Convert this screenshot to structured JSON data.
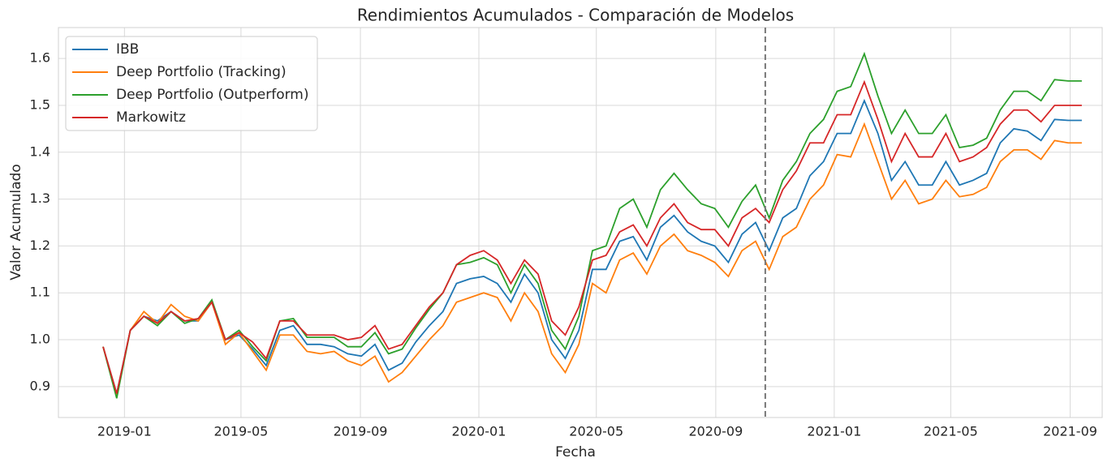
{
  "chart_data": {
    "type": "line",
    "title": "Rendimientos Acumulados - Comparación de Modelos",
    "xlabel": "Fecha",
    "ylabel": "Valor Acumulado",
    "x": [
      "2018-12-10",
      "2018-12-24",
      "2019-01-07",
      "2019-01-21",
      "2019-02-04",
      "2019-02-18",
      "2019-03-04",
      "2019-03-18",
      "2019-04-01",
      "2019-04-15",
      "2019-04-29",
      "2019-05-13",
      "2019-05-27",
      "2019-06-10",
      "2019-06-24",
      "2019-07-08",
      "2019-07-22",
      "2019-08-05",
      "2019-08-19",
      "2019-09-02",
      "2019-09-16",
      "2019-09-30",
      "2019-10-14",
      "2019-10-28",
      "2019-11-11",
      "2019-11-25",
      "2019-12-09",
      "2019-12-23",
      "2020-01-06",
      "2020-01-20",
      "2020-02-03",
      "2020-02-17",
      "2020-03-02",
      "2020-03-16",
      "2020-03-30",
      "2020-04-13",
      "2020-04-27",
      "2020-05-11",
      "2020-05-25",
      "2020-06-08",
      "2020-06-22",
      "2020-07-06",
      "2020-07-20",
      "2020-08-03",
      "2020-08-17",
      "2020-08-31",
      "2020-09-14",
      "2020-09-28",
      "2020-10-12",
      "2020-10-26",
      "2020-11-09",
      "2020-11-23",
      "2020-12-07",
      "2020-12-21",
      "2021-01-04",
      "2021-01-18",
      "2021-02-01",
      "2021-02-15",
      "2021-03-01",
      "2021-03-15",
      "2021-03-29",
      "2021-04-12",
      "2021-04-26",
      "2021-05-10",
      "2021-05-24",
      "2021-06-07",
      "2021-06-21",
      "2021-07-05",
      "2021-07-19",
      "2021-08-02",
      "2021-08-16",
      "2021-08-30",
      "2021-09-13"
    ],
    "series": [
      {
        "name": "IBB",
        "color": "#1f77b4",
        "values": [
          0.985,
          0.885,
          1.02,
          1.05,
          1.04,
          1.06,
          1.04,
          1.04,
          1.08,
          1.0,
          1.01,
          0.98,
          0.945,
          1.02,
          1.03,
          0.99,
          0.99,
          0.985,
          0.97,
          0.965,
          0.99,
          0.935,
          0.95,
          0.995,
          1.03,
          1.06,
          1.12,
          1.13,
          1.135,
          1.12,
          1.08,
          1.14,
          1.1,
          1.0,
          0.96,
          1.02,
          1.15,
          1.15,
          1.21,
          1.22,
          1.17,
          1.24,
          1.265,
          1.23,
          1.21,
          1.2,
          1.165,
          1.225,
          1.25,
          1.19,
          1.26,
          1.28,
          1.35,
          1.38,
          1.44,
          1.44,
          1.51,
          1.44,
          1.34,
          1.38,
          1.33,
          1.33,
          1.38,
          1.33,
          1.34,
          1.355,
          1.42,
          1.45,
          1.445,
          1.425,
          1.47,
          1.468,
          1.468
        ]
      },
      {
        "name": "Deep Portfolio (Tracking)",
        "color": "#ff7f0e",
        "values": [
          0.985,
          0.88,
          1.02,
          1.06,
          1.035,
          1.075,
          1.05,
          1.04,
          1.08,
          0.99,
          1.015,
          0.975,
          0.935,
          1.01,
          1.01,
          0.975,
          0.97,
          0.975,
          0.955,
          0.945,
          0.965,
          0.91,
          0.93,
          0.965,
          1.0,
          1.03,
          1.08,
          1.09,
          1.1,
          1.09,
          1.04,
          1.1,
          1.06,
          0.97,
          0.93,
          0.99,
          1.12,
          1.1,
          1.17,
          1.185,
          1.14,
          1.2,
          1.225,
          1.19,
          1.18,
          1.165,
          1.135,
          1.19,
          1.21,
          1.15,
          1.22,
          1.24,
          1.3,
          1.33,
          1.395,
          1.39,
          1.46,
          1.38,
          1.3,
          1.34,
          1.29,
          1.3,
          1.34,
          1.305,
          1.31,
          1.325,
          1.38,
          1.405,
          1.405,
          1.385,
          1.425,
          1.42,
          1.42
        ]
      },
      {
        "name": "Deep Portfolio (Outperform)",
        "color": "#2ca02c",
        "values": [
          0.985,
          0.875,
          1.02,
          1.05,
          1.03,
          1.06,
          1.035,
          1.045,
          1.085,
          1.0,
          1.02,
          0.985,
          0.955,
          1.04,
          1.045,
          1.005,
          1.005,
          1.005,
          0.985,
          0.985,
          1.015,
          0.97,
          0.98,
          1.025,
          1.065,
          1.1,
          1.16,
          1.165,
          1.175,
          1.16,
          1.1,
          1.16,
          1.12,
          1.02,
          0.98,
          1.05,
          1.19,
          1.2,
          1.28,
          1.3,
          1.24,
          1.32,
          1.355,
          1.32,
          1.29,
          1.28,
          1.24,
          1.295,
          1.33,
          1.26,
          1.34,
          1.38,
          1.44,
          1.47,
          1.53,
          1.54,
          1.61,
          1.52,
          1.44,
          1.49,
          1.44,
          1.44,
          1.48,
          1.41,
          1.415,
          1.43,
          1.49,
          1.53,
          1.53,
          1.51,
          1.555,
          1.552,
          1.552
        ]
      },
      {
        "name": "Markowitz",
        "color": "#d62728",
        "values": [
          0.985,
          0.885,
          1.02,
          1.05,
          1.035,
          1.06,
          1.04,
          1.045,
          1.08,
          1.0,
          1.015,
          0.995,
          0.96,
          1.04,
          1.04,
          1.01,
          1.01,
          1.01,
          1.0,
          1.005,
          1.03,
          0.98,
          0.99,
          1.03,
          1.07,
          1.1,
          1.16,
          1.18,
          1.19,
          1.17,
          1.12,
          1.17,
          1.14,
          1.04,
          1.01,
          1.07,
          1.17,
          1.18,
          1.23,
          1.245,
          1.2,
          1.26,
          1.29,
          1.25,
          1.235,
          1.235,
          1.2,
          1.26,
          1.28,
          1.25,
          1.32,
          1.36,
          1.42,
          1.42,
          1.48,
          1.48,
          1.55,
          1.47,
          1.38,
          1.44,
          1.39,
          1.39,
          1.44,
          1.38,
          1.39,
          1.41,
          1.46,
          1.49,
          1.49,
          1.465,
          1.5,
          1.5,
          1.5
        ]
      }
    ],
    "xlim": [
      "2018-10-25",
      "2021-10-04"
    ],
    "xticks": [
      {
        "value": "2019-01",
        "label": "2019-01"
      },
      {
        "value": "2019-05",
        "label": "2019-05"
      },
      {
        "value": "2019-09",
        "label": "2019-09"
      },
      {
        "value": "2020-01",
        "label": "2020-01"
      },
      {
        "value": "2020-05",
        "label": "2020-05"
      },
      {
        "value": "2020-09",
        "label": "2020-09"
      },
      {
        "value": "2021-01",
        "label": "2021-01"
      },
      {
        "value": "2021-05",
        "label": "2021-05"
      },
      {
        "value": "2021-09",
        "label": "2021-09"
      }
    ],
    "ylim": [
      0.834,
      1.666
    ],
    "yticks": [
      0.9,
      {
        "value": 1,
        "label": "1.0"
      },
      1.1,
      1.2,
      1.3,
      1.4,
      1.5,
      1.6
    ],
    "vline": "2020-10-22",
    "grid": true,
    "legend": "upper left"
  }
}
